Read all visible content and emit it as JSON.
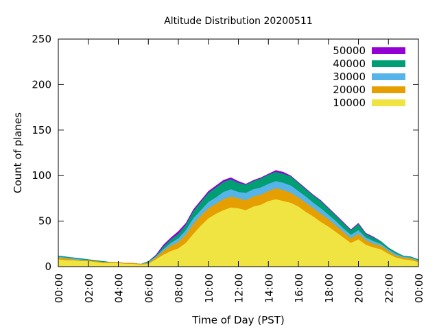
{
  "chart_data": {
    "type": "area",
    "title": "Altitude Distribution 20200511",
    "xlabel": "Time of Day (PST)",
    "ylabel": "Count of planes",
    "ylim": [
      0,
      250
    ],
    "y_ticks": [
      "0",
      "50",
      "100",
      "150",
      "200",
      "250"
    ],
    "x_ticks": [
      "00:00",
      "02:00",
      "04:00",
      "06:00",
      "08:00",
      "10:00",
      "12:00",
      "14:00",
      "16:00",
      "18:00",
      "20:00",
      "22:00",
      "00:00"
    ],
    "xlim_hours": [
      0,
      24
    ],
    "stacked": true,
    "legend_position": "top-right",
    "x_hours": [
      0,
      0.5,
      1,
      1.5,
      2,
      2.5,
      3,
      3.5,
      4,
      4.5,
      5,
      5.5,
      6,
      6.5,
      7,
      7.5,
      8,
      8.5,
      9,
      9.5,
      10,
      10.5,
      11,
      11.5,
      12,
      12.5,
      13,
      13.5,
      14,
      14.5,
      15,
      15.5,
      16,
      16.5,
      17,
      17.5,
      18,
      18.5,
      19,
      19.5,
      20,
      20.5,
      21,
      21.5,
      22,
      22.5,
      23,
      23.5,
      24
    ],
    "series": [
      {
        "name": "10000",
        "color": "#f0e442",
        "values": [
          8,
          7,
          7,
          6,
          6,
          5,
          4,
          4,
          4,
          3,
          3,
          2,
          3,
          8,
          13,
          17,
          20,
          26,
          36,
          45,
          53,
          58,
          62,
          65,
          64,
          62,
          66,
          68,
          72,
          74,
          72,
          70,
          66,
          60,
          55,
          49,
          44,
          38,
          32,
          26,
          30,
          24,
          21,
          19,
          14,
          10,
          8,
          7,
          5
        ]
      },
      {
        "name": "20000",
        "color": "#e69f00",
        "values": [
          2,
          2,
          1,
          1,
          1,
          1,
          1,
          1,
          1,
          1,
          1,
          1,
          1,
          2,
          4,
          6,
          7,
          9,
          11,
          11,
          11,
          11,
          12,
          12,
          11,
          11,
          11,
          11,
          11,
          12,
          12,
          11,
          10,
          10,
          9,
          9,
          8,
          7,
          6,
          5,
          6,
          5,
          4,
          4,
          3,
          2,
          2,
          2,
          1
        ]
      },
      {
        "name": "30000",
        "color": "#56b4e9",
        "values": [
          1,
          1,
          1,
          1,
          0,
          0,
          0,
          0,
          0,
          0,
          0,
          0,
          1,
          1,
          2,
          3,
          4,
          5,
          6,
          6,
          7,
          7,
          8,
          8,
          7,
          8,
          8,
          8,
          8,
          8,
          8,
          8,
          7,
          7,
          6,
          6,
          5,
          5,
          4,
          4,
          4,
          3,
          3,
          2,
          2,
          2,
          1,
          1,
          1
        ]
      },
      {
        "name": "40000",
        "color": "#009e73",
        "values": [
          1,
          1,
          1,
          1,
          1,
          1,
          1,
          0,
          0,
          0,
          0,
          0,
          1,
          1,
          3,
          4,
          5,
          6,
          8,
          9,
          10,
          11,
          11,
          11,
          10,
          9,
          9,
          10,
          10,
          10,
          10,
          10,
          9,
          8,
          8,
          8,
          7,
          6,
          6,
          5,
          7,
          4,
          4,
          3,
          2,
          2,
          1,
          1,
          1
        ]
      },
      {
        "name": "50000",
        "color": "#9400d3",
        "values": [
          0,
          0,
          0,
          0,
          0,
          0,
          0,
          0,
          0,
          0,
          0,
          0,
          0,
          1,
          2,
          2,
          3,
          2,
          2,
          2,
          2,
          2,
          2,
          2,
          2,
          1,
          1,
          1,
          1,
          2,
          2,
          1,
          1,
          1,
          1,
          1,
          1,
          1,
          1,
          1,
          1,
          1,
          1,
          0,
          0,
          0,
          0,
          0,
          0
        ]
      }
    ]
  }
}
